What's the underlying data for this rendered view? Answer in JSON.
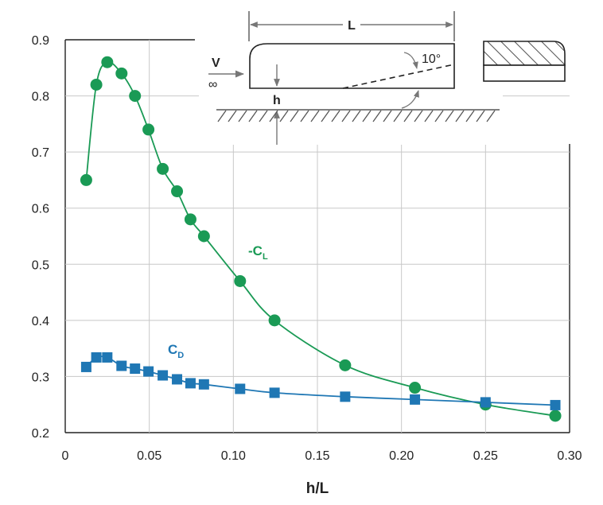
{
  "chart_data": {
    "type": "line",
    "title": "",
    "xlabel": "h/L",
    "ylabel": "",
    "xlim": [
      0,
      0.3
    ],
    "ylim": [
      0.2,
      0.9
    ],
    "x_ticks": [
      0,
      0.05,
      0.1,
      0.15,
      0.2,
      0.25,
      0.3
    ],
    "x_tick_labels": [
      "0",
      "0.05",
      "0.10",
      "0.15",
      "0.20",
      "0.25",
      "0.30"
    ],
    "y_ticks": [
      0.2,
      0.3,
      0.4,
      0.5,
      0.6,
      0.7,
      0.8,
      0.9
    ],
    "y_tick_labels": [
      "0.2",
      "0.3",
      "0.4",
      "0.5",
      "0.6",
      "0.7",
      "0.8",
      "0.9"
    ],
    "grid": true,
    "series": [
      {
        "name": "-CL",
        "label_main": "-C",
        "label_sub": "L",
        "color": "#1a9a55",
        "marker": "circle",
        "x": [
          0.0125,
          0.0185,
          0.025,
          0.0335,
          0.0415,
          0.0495,
          0.058,
          0.0665,
          0.0745,
          0.0825,
          0.104,
          0.1245,
          0.1665,
          0.208,
          0.25,
          0.2915
        ],
        "y": [
          0.65,
          0.82,
          0.86,
          0.84,
          0.8,
          0.74,
          0.67,
          0.63,
          0.58,
          0.55,
          0.47,
          0.4,
          0.32,
          0.28,
          0.25,
          0.23
        ]
      },
      {
        "name": "CD",
        "label_main": "C",
        "label_sub": "D",
        "color": "#1f77b4",
        "marker": "square",
        "x": [
          0.0125,
          0.0185,
          0.025,
          0.0335,
          0.0415,
          0.0495,
          0.058,
          0.0665,
          0.0745,
          0.0825,
          0.104,
          0.1245,
          0.1665,
          0.208,
          0.25,
          0.2915
        ],
        "y": [
          0.317,
          0.334,
          0.334,
          0.319,
          0.314,
          0.309,
          0.302,
          0.295,
          0.288,
          0.286,
          0.278,
          0.271,
          0.264,
          0.259,
          0.254,
          0.249
        ]
      }
    ]
  },
  "inset": {
    "length_label": "L",
    "velocity_label": "V",
    "velocity_sub": "∞",
    "height_label": "h",
    "angle_label": "10°"
  }
}
